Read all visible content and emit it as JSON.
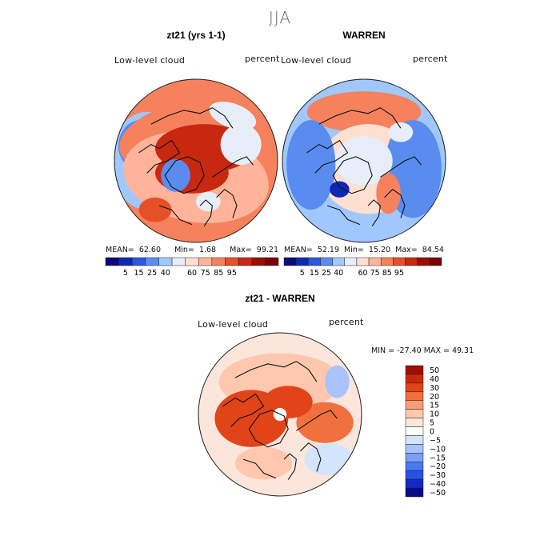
{
  "season_title": "JJA",
  "panels": [
    {
      "title": "zt21 (yrs 1-1)",
      "field_label": "Low-level cloud",
      "units_label": "percent",
      "stats": {
        "mean_label": "MEAN=",
        "mean": "62.60",
        "min_label": "Min=",
        "min": "1.68",
        "max_label": "Max=",
        "max": "99.21"
      }
    },
    {
      "title": "WARREN",
      "field_label": "Low-level cloud",
      "units_label": "percent",
      "stats": {
        "mean_label": "MEAN=",
        "mean": "52.19",
        "min_label": "Min=",
        "min": "15.20",
        "max_label": "Max=",
        "max": "84.54"
      }
    },
    {
      "title": "zt21 - WARREN",
      "field_label": "Low-level cloud",
      "units_label": "percent",
      "stats_text": "MIN = -27.40 MAX =  49.31"
    }
  ],
  "colors": {
    "abs_scale": [
      "#0a0a78",
      "#0e28b4",
      "#2a58e0",
      "#5a8cf0",
      "#a0c8ff",
      "#e6eefa",
      "#ffe0d0",
      "#ffb49a",
      "#f5825c",
      "#e65028",
      "#c82810",
      "#961000",
      "#780000"
    ],
    "diff_scale": [
      "#0a0a82",
      "#1428c8",
      "#2850e6",
      "#4a78f0",
      "#7aa0f5",
      "#a8c4fa",
      "#d4e4fc",
      "#ffffff",
      "#fce6dc",
      "#ffc8ae",
      "#fa9e78",
      "#f0703e",
      "#e04418",
      "#c82a08",
      "#a01000"
    ]
  },
  "chart_data": [
    {
      "type": "heatmap",
      "title": "zt21 (yrs 1-1)",
      "projection": "north polar stereographic",
      "field": "Low-level cloud",
      "units": "percent",
      "mean": 62.6,
      "min": 1.68,
      "max": 99.21,
      "colorbar_ticks": [
        "5",
        "15",
        "25",
        "40",
        "60",
        "75",
        "85",
        "95"
      ]
    },
    {
      "type": "heatmap",
      "title": "WARREN",
      "projection": "north polar stereographic",
      "field": "Low-level cloud",
      "units": "percent",
      "mean": 52.19,
      "min": 15.2,
      "max": 84.54,
      "colorbar_ticks": [
        "5",
        "15",
        "25",
        "40",
        "60",
        "75",
        "85",
        "95"
      ]
    },
    {
      "type": "heatmap",
      "title": "zt21 - WARREN",
      "projection": "north polar stereographic",
      "field": "Low-level cloud",
      "units": "percent",
      "min": -27.4,
      "max": 49.31,
      "colorbar_ticks": [
        "50",
        "40",
        "30",
        "20",
        "15",
        "10",
        "5",
        "0",
        "−5",
        "−10",
        "−15",
        "−20",
        "−30",
        "−40",
        "−50"
      ]
    }
  ]
}
